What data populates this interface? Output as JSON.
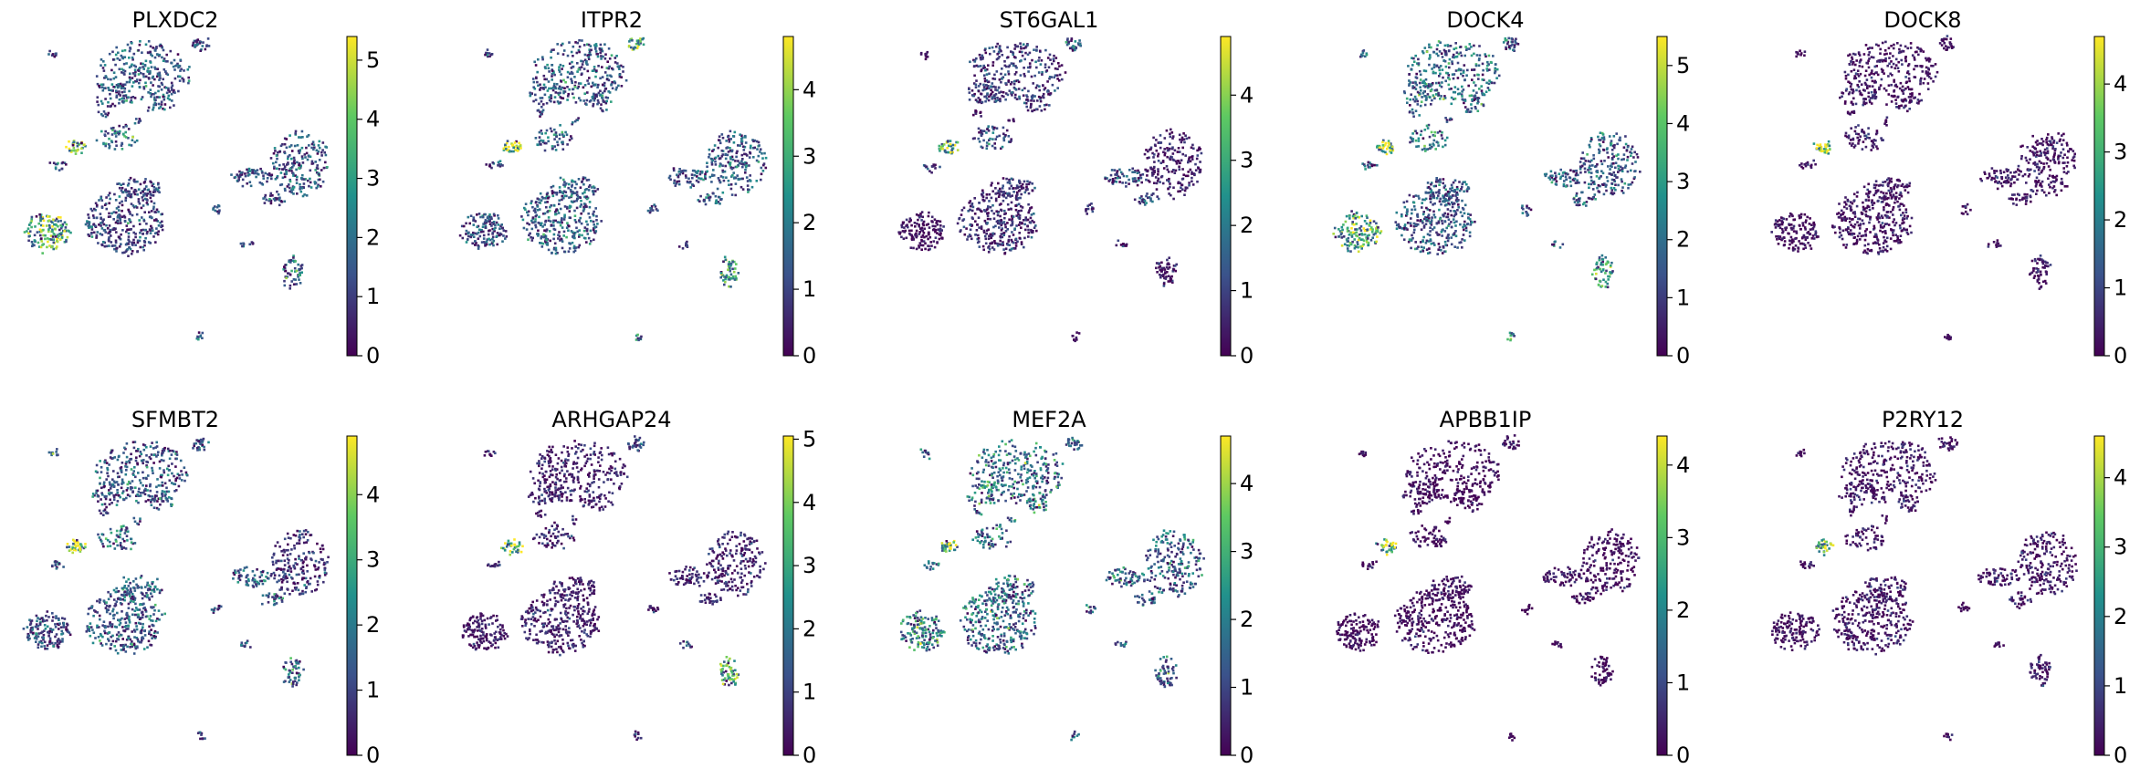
{
  "figure": {
    "description_type": "scanpy embedding feature plots",
    "colormap": "viridis",
    "colormap_stops": [
      "#440154",
      "#3b528b",
      "#21918c",
      "#5ec962",
      "#fde725"
    ]
  },
  "chart_data": [
    {
      "type": "scatter",
      "title": "PLXDC2",
      "vmax": 5.4,
      "ticks": [
        0,
        1,
        2,
        3,
        4,
        5
      ],
      "tick_labels": [
        "0",
        "1",
        "2",
        "3",
        "4",
        "5"
      ],
      "cluster_values": {
        "top_main": 1.6,
        "top_right_small": 1.3,
        "top_left_dot": 1.4,
        "left_link": 1.5,
        "yellow_blob": 4.9,
        "left_cluster": 3.6,
        "center_big": 1.2,
        "right_ring": 1.6,
        "right_link": 1.5,
        "small_mid": 1.5,
        "tiny_right": 1.3,
        "lower_right": 1.8,
        "bottom_dot": 1.4,
        "middle_band": 2.2
      }
    },
    {
      "type": "scatter",
      "title": "ITPR2",
      "vmax": 4.8,
      "ticks": [
        0,
        1,
        2,
        3,
        4
      ],
      "tick_labels": [
        "0",
        "1",
        "2",
        "3",
        "4"
      ],
      "cluster_values": {
        "top_main": 1.4,
        "top_right_small": 3.3,
        "top_left_dot": 1.0,
        "left_link": 1.2,
        "yellow_blob": 4.4,
        "left_cluster": 1.4,
        "center_big": 1.5,
        "right_ring": 1.5,
        "right_link": 1.4,
        "small_mid": 1.0,
        "tiny_right": 1.2,
        "lower_right": 3.2,
        "bottom_dot": 1.6,
        "middle_band": 1.5
      }
    },
    {
      "type": "scatter",
      "title": "ST6GAL1",
      "vmax": 4.9,
      "ticks": [
        0,
        1,
        2,
        3,
        4
      ],
      "tick_labels": [
        "0",
        "1",
        "2",
        "3",
        "4"
      ],
      "cluster_values": {
        "top_main": 0.9,
        "top_right_small": 1.3,
        "top_left_dot": 0.3,
        "left_link": 0.8,
        "yellow_blob": 3.8,
        "left_cluster": 0.2,
        "center_big": 0.7,
        "right_ring": 0.4,
        "right_link": 1.1,
        "small_mid": 0.8,
        "tiny_right": 0.8,
        "lower_right": 0.4,
        "bottom_dot": 0.3,
        "middle_band": 1.2
      }
    },
    {
      "type": "scatter",
      "title": "DOCK4",
      "vmax": 5.5,
      "ticks": [
        0,
        1,
        2,
        3,
        4,
        5
      ],
      "tick_labels": [
        "0",
        "1",
        "2",
        "3",
        "4",
        "5"
      ],
      "cluster_values": {
        "top_main": 2.1,
        "top_right_small": 1.8,
        "top_left_dot": 1.6,
        "left_link": 1.9,
        "yellow_blob": 4.9,
        "left_cluster": 3.5,
        "center_big": 1.6,
        "right_ring": 1.7,
        "right_link": 1.9,
        "small_mid": 1.5,
        "tiny_right": 1.6,
        "lower_right": 3.3,
        "bottom_dot": 2.5,
        "middle_band": 2.3
      }
    },
    {
      "type": "scatter",
      "title": "DOCK8",
      "vmax": 4.7,
      "ticks": [
        0,
        1,
        2,
        3,
        4
      ],
      "tick_labels": [
        "0",
        "1",
        "2",
        "3",
        "4"
      ],
      "cluster_values": {
        "top_main": 0.3,
        "top_right_small": 0.3,
        "top_left_dot": 0.2,
        "left_link": 0.4,
        "yellow_blob": 4.2,
        "left_cluster": 0.2,
        "center_big": 0.3,
        "right_ring": 0.3,
        "right_link": 0.3,
        "small_mid": 0.2,
        "tiny_right": 0.2,
        "lower_right": 0.3,
        "bottom_dot": 0.2,
        "middle_band": 0.4
      }
    },
    {
      "type": "scatter",
      "title": "SFMBT2",
      "vmax": 4.9,
      "ticks": [
        0,
        1,
        2,
        3,
        4
      ],
      "tick_labels": [
        "0",
        "1",
        "2",
        "3",
        "4"
      ],
      "cluster_values": {
        "top_main": 1.4,
        "top_right_small": 1.4,
        "top_left_dot": 1.3,
        "left_link": 1.5,
        "yellow_blob": 4.4,
        "left_cluster": 1.3,
        "center_big": 1.5,
        "right_ring": 0.8,
        "right_link": 1.5,
        "small_mid": 1.2,
        "tiny_right": 1.4,
        "lower_right": 2.0,
        "bottom_dot": 1.2,
        "middle_band": 1.9
      }
    },
    {
      "type": "scatter",
      "title": "ARHGAP24",
      "vmax": 5.05,
      "ticks": [
        0,
        1,
        2,
        3,
        4,
        5
      ],
      "tick_labels": [
        "0",
        "1",
        "2",
        "3",
        "4",
        "5"
      ],
      "cluster_values": {
        "top_main": 0.5,
        "top_right_small": 1.3,
        "top_left_dot": 0.4,
        "left_link": 0.6,
        "yellow_blob": 4.5,
        "left_cluster": 0.3,
        "center_big": 0.5,
        "right_ring": 0.6,
        "right_link": 0.7,
        "small_mid": 0.5,
        "tiny_right": 1.5,
        "lower_right": 3.3,
        "bottom_dot": 0.5,
        "middle_band": 0.7
      }
    },
    {
      "type": "scatter",
      "title": "MEF2A",
      "vmax": 4.7,
      "ticks": [
        0,
        1,
        2,
        3,
        4
      ],
      "tick_labels": [
        "0",
        "1",
        "2",
        "3",
        "4"
      ],
      "cluster_values": {
        "top_main": 1.9,
        "top_right_small": 1.6,
        "top_left_dot": 1.6,
        "left_link": 1.8,
        "yellow_blob": 4.3,
        "left_cluster": 2.3,
        "center_big": 1.7,
        "right_ring": 1.6,
        "right_link": 1.7,
        "small_mid": 1.5,
        "tiny_right": 1.6,
        "lower_right": 1.7,
        "bottom_dot": 1.8,
        "middle_band": 1.9
      }
    },
    {
      "type": "scatter",
      "title": "APBB1IP",
      "vmax": 4.4,
      "ticks": [
        0,
        1,
        2,
        3,
        4
      ],
      "tick_labels": [
        "0",
        "1",
        "2",
        "3",
        "4"
      ],
      "cluster_values": {
        "top_main": 0.15,
        "top_right_small": 0.2,
        "top_left_dot": 0.1,
        "left_link": 0.2,
        "yellow_blob": 3.9,
        "left_cluster": 0.1,
        "center_big": 0.15,
        "right_ring": 0.15,
        "right_link": 0.2,
        "small_mid": 0.1,
        "tiny_right": 0.1,
        "lower_right": 0.2,
        "bottom_dot": 0.1,
        "middle_band": 0.2
      }
    },
    {
      "type": "scatter",
      "title": "P2RY12",
      "vmax": 4.6,
      "ticks": [
        0,
        1,
        2,
        3,
        4
      ],
      "tick_labels": [
        "0",
        "1",
        "2",
        "3",
        "4"
      ],
      "cluster_values": {
        "top_main": 0.3,
        "top_right_small": 0.3,
        "top_left_dot": 0.2,
        "left_link": 0.4,
        "yellow_blob": 3.9,
        "left_cluster": 0.2,
        "center_big": 0.3,
        "right_ring": 0.3,
        "right_link": 0.3,
        "small_mid": 0.2,
        "tiny_right": 0.2,
        "lower_right": 0.3,
        "bottom_dot": 0.2,
        "middle_band": 0.3
      }
    }
  ]
}
